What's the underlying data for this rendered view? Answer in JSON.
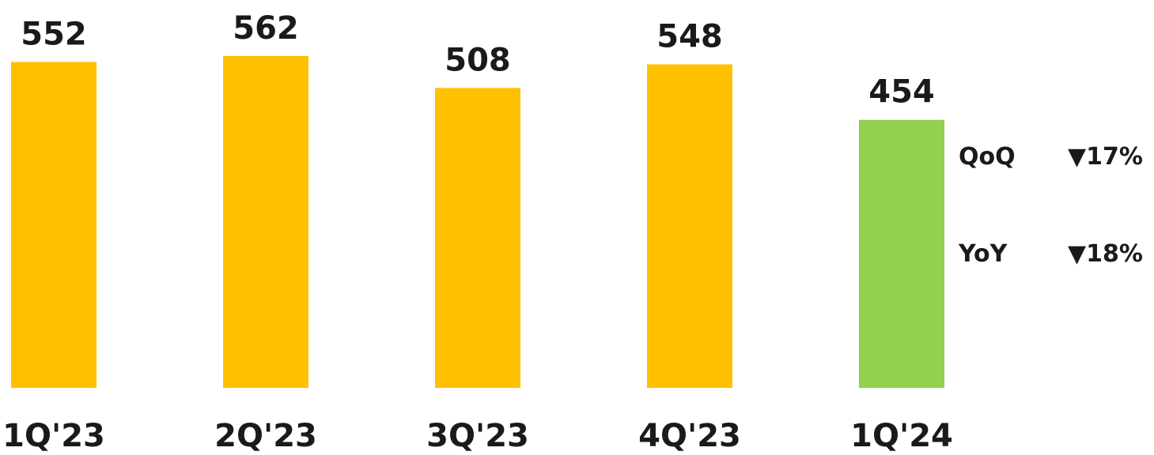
{
  "chart_data": {
    "type": "bar",
    "categories": [
      "1Q'23",
      "2Q'23",
      "3Q'23",
      "4Q'23",
      "1Q'24"
    ],
    "values": [
      552,
      562,
      508,
      548,
      454
    ],
    "data_labels": [
      "552",
      "562",
      "508",
      "548",
      "454"
    ],
    "bar_colors": [
      "#FFC000",
      "#FFC000",
      "#FFC000",
      "#FFC000",
      "#92D050"
    ],
    "title": "",
    "xlabel": "",
    "ylabel": "",
    "ylim": [
      0,
      562
    ],
    "grid": false,
    "legend": "none",
    "annotations": [
      {
        "label": "QoQ",
        "value": "▼17%"
      },
      {
        "label": "YoY",
        "value": "▼18%"
      }
    ]
  }
}
